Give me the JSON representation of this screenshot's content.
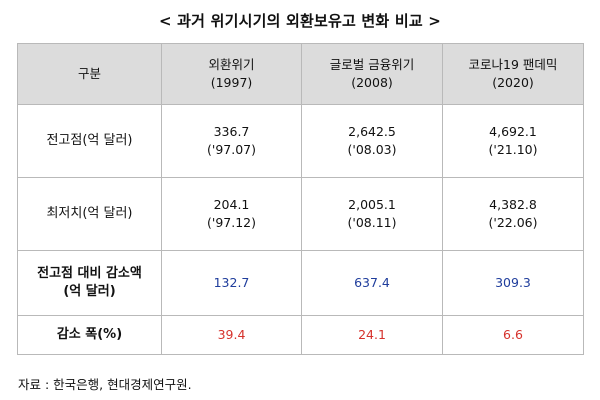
{
  "title": "< 과거 위기시기의 외환보유고 변화 비교 >",
  "table": {
    "corner": "구분",
    "columns": [
      {
        "name": "외환위기",
        "year": "(1997)"
      },
      {
        "name": "글로벌 금융위기",
        "year": "(2008)"
      },
      {
        "name": "코로나19 팬데믹",
        "year": "(2020)"
      }
    ],
    "rows": [
      {
        "label": "전고점(억 달러)",
        "cells": [
          {
            "value": "336.7",
            "date": "('97.07)"
          },
          {
            "value": "2,642.5",
            "date": "('08.03)"
          },
          {
            "value": "4,692.1",
            "date": "('21.10)"
          }
        ]
      },
      {
        "label": "최저치(억 달러)",
        "cells": [
          {
            "value": "204.1",
            "date": "('97.12)"
          },
          {
            "value": "2,005.1",
            "date": "('08.11)"
          },
          {
            "value": "4,382.8",
            "date": "('22.06)"
          }
        ]
      },
      {
        "label_line1": "전고점 대비 감소액",
        "label_line2": "(억 달러)",
        "values": [
          "132.7",
          "637.4",
          "309.3"
        ]
      },
      {
        "label": "감소 폭(%)",
        "values": [
          "39.4",
          "24.1",
          "6.6"
        ]
      }
    ]
  },
  "source_note": "자료 : 한국은행, 현대경제연구원.",
  "colors": {
    "blue_text": "#1f3d9c",
    "red_text": "#d6322c",
    "header_bg": "#dcdcdc"
  }
}
